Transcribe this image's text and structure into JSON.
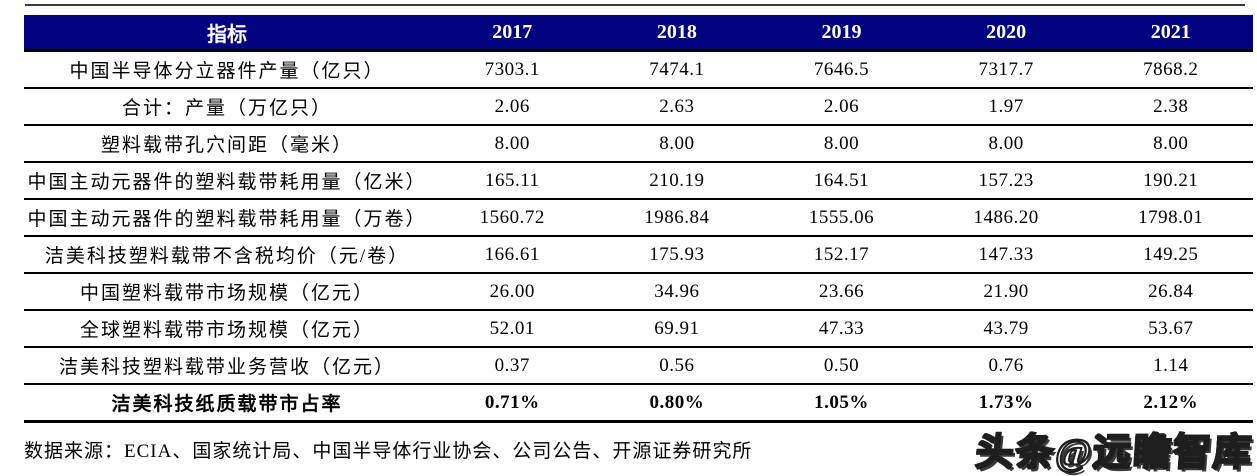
{
  "table": {
    "header": [
      "指标",
      "2017",
      "2018",
      "2019",
      "2020",
      "2021"
    ],
    "rows": [
      {
        "label": "中国半导体分立器件产量（亿只）",
        "values": [
          "7303.1",
          "7474.1",
          "7646.5",
          "7317.7",
          "7868.2"
        ]
      },
      {
        "label": "合计：产量（万亿只）",
        "values": [
          "2.06",
          "2.63",
          "2.06",
          "1.97",
          "2.38"
        ]
      },
      {
        "label": "塑料载带孔穴间距（毫米）",
        "values": [
          "8.00",
          "8.00",
          "8.00",
          "8.00",
          "8.00"
        ]
      },
      {
        "label": "中国主动元器件的塑料载带耗用量（亿米）",
        "values": [
          "165.11",
          "210.19",
          "164.51",
          "157.23",
          "190.21"
        ]
      },
      {
        "label": "中国主动元器件的塑料载带耗用量（万卷）",
        "values": [
          "1560.72",
          "1986.84",
          "1555.06",
          "1486.20",
          "1798.01"
        ]
      },
      {
        "label": "洁美科技塑料载带不含税均价（元/卷）",
        "values": [
          "166.61",
          "175.93",
          "152.17",
          "147.33",
          "149.25"
        ]
      },
      {
        "label": "中国塑料载带市场规模（亿元）",
        "values": [
          "26.00",
          "34.96",
          "23.66",
          "21.90",
          "26.84"
        ]
      },
      {
        "label": "全球塑料载带市场规模（亿元）",
        "values": [
          "52.01",
          "69.91",
          "47.33",
          "43.79",
          "53.67"
        ]
      },
      {
        "label": "洁美科技塑料载带业务营收（亿元）",
        "values": [
          "0.37",
          "0.56",
          "0.50",
          "0.76",
          "1.14"
        ]
      },
      {
        "label": "洁美科技纸质载带市占率",
        "values": [
          "0.71%",
          "0.80%",
          "1.05%",
          "1.73%",
          "2.12%"
        ]
      }
    ]
  },
  "footer": {
    "source_text": "数据来源：ECIA、国家统计局、中国半导体行业协会、公司公告、开源证券研究所"
  },
  "watermark": {
    "text": "头条@远瞻智库"
  },
  "colors": {
    "header_bg": "#020281",
    "header_text": "#ffffff",
    "border": "#000000",
    "top_rule": "#3d3d3d"
  }
}
